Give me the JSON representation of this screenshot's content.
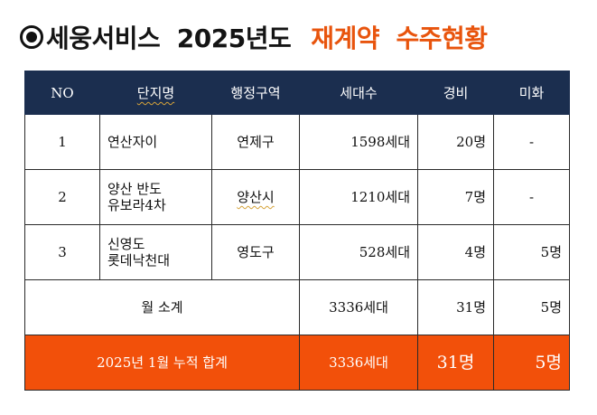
{
  "title": {
    "main": "세웅서비스  2025년도",
    "highlight": "재계약  수주현황"
  },
  "colors": {
    "header_bg": "#1b2e4f",
    "accent": "#f2500a",
    "title_accent": "#e8540d"
  },
  "table": {
    "headers": [
      "NO",
      "단지명",
      "행정구역",
      "세대수",
      "경비",
      "미화"
    ],
    "rows": [
      {
        "no": "1",
        "name_line1": "연산자이",
        "name_line2": "",
        "district": "연제구",
        "households": "1598세대",
        "guard": "20명",
        "cleaning": "-"
      },
      {
        "no": "2",
        "name_line1": "양산 반도",
        "name_line2": "유보라4차",
        "district": "양산시",
        "households": "1210세대",
        "guard": "7명",
        "cleaning": "-"
      },
      {
        "no": "3",
        "name_line1": "신영도",
        "name_line2": "롯데낙천대",
        "district": "영도구",
        "households": "528세대",
        "guard": "4명",
        "cleaning": "5명"
      }
    ],
    "subtotal": {
      "label": "월 소계",
      "households": "3336세대",
      "guard": "31명",
      "cleaning": "5명"
    },
    "total": {
      "label": "2025년 1월 누적 합계",
      "households": "3336세대",
      "guard": "31명",
      "cleaning": "5명"
    }
  }
}
